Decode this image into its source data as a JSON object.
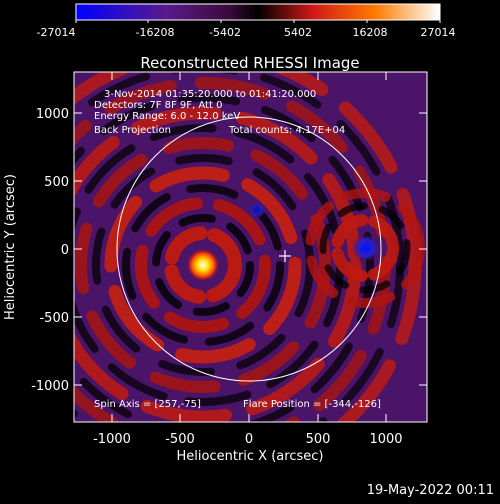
{
  "colorbar": {
    "ticks": [
      "-27014",
      "-16208",
      "-5402",
      "5402",
      "16208",
      "27014"
    ]
  },
  "title": "Reconstructed RHESSI Image",
  "annotations": {
    "time_range": "3-Nov-2014 01:35:20.000 to 01:41:20.000",
    "detectors": "Detectors: 7F 8F 9F, Att 0",
    "energy_range": "Energy Range: 6.0 - 12.0 keV",
    "method": "Back Projection",
    "total_counts": "Total counts: 4.17E+04",
    "spin_axis": "Spin Axis = [257,-75]",
    "flare_position": "Flare Position = [-344,-126]"
  },
  "axes": {
    "xlabel": "Heliocentric X (arcsec)",
    "ylabel": "Heliocentric Y (arcsec)",
    "x_ticks": [
      "-1000",
      "-500",
      "0",
      "500",
      "1000"
    ],
    "y_ticks": [
      "1000",
      "500",
      "0",
      "-500",
      "-1000"
    ]
  },
  "footer_timestamp": "19-May-2022 00:11",
  "colors": {
    "solar_limb": "#ffffff",
    "background": "#000000",
    "colormap": [
      "#0000ff",
      "#5a1a8a",
      "#000000",
      "#d01818",
      "#ff8800",
      "#ffffff"
    ]
  }
}
